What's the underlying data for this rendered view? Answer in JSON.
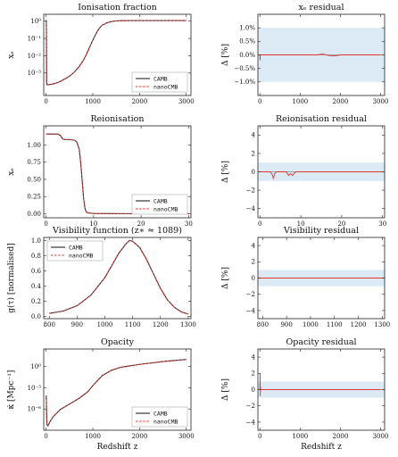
{
  "colors": {
    "camb": "#222222",
    "nanocmb": "#e3342f",
    "band": "#dbeaf5",
    "zero_line": "#555555"
  },
  "legend": {
    "camb": "CAMB",
    "nanocmb": "nanoCMB"
  },
  "chart_data": [
    {
      "type": "line",
      "title": "Ionisation fraction",
      "xlabel": "",
      "ylabel": "x_e",
      "ylabel_display": "xₑ",
      "yscale": "log",
      "xlim": [
        -50,
        3100
      ],
      "ylim": [
        5e-05,
        2.5
      ],
      "xticks": [
        0,
        1000,
        2000,
        3000
      ],
      "xtick_labels": [
        "0",
        "1000",
        "2000",
        "3000"
      ],
      "yticks": [
        0.001,
        0.01,
        0.1,
        1
      ],
      "ytick_labels": [
        "10⁻³",
        "10⁻²",
        "10⁻¹",
        "10⁰"
      ],
      "legend_position": "lower-right",
      "x": [
        0,
        2,
        5,
        8,
        12,
        20,
        40,
        100,
        200,
        300,
        400,
        500,
        600,
        700,
        800,
        850,
        900,
        950,
        1000,
        1050,
        1100,
        1150,
        1200,
        1300,
        1400,
        1500,
        1600,
        1800,
        2000,
        2500,
        3000
      ],
      "series": [
        {
          "name": "CAMB",
          "values": [
            1.0,
            1.08,
            1.16,
            0.2,
            0.0003,
            0.00021,
            0.00021,
            0.00022,
            0.00025,
            0.00032,
            0.00045,
            0.00065,
            0.0011,
            0.0022,
            0.0055,
            0.01,
            0.02,
            0.04,
            0.08,
            0.15,
            0.27,
            0.42,
            0.58,
            0.8,
            0.96,
            1.04,
            1.07,
            1.08,
            1.08,
            1.08,
            1.08
          ]
        },
        {
          "name": "nanoCMB",
          "values": [
            1.0,
            1.08,
            1.16,
            0.2,
            0.0003,
            0.00021,
            0.00021,
            0.00022,
            0.00025,
            0.00032,
            0.00045,
            0.00065,
            0.0011,
            0.0022,
            0.0055,
            0.01,
            0.02,
            0.04,
            0.08,
            0.15,
            0.27,
            0.42,
            0.58,
            0.8,
            0.96,
            1.04,
            1.07,
            1.08,
            1.08,
            1.08,
            1.08
          ]
        }
      ]
    },
    {
      "type": "line",
      "title": "x_e residual",
      "title_display": "xₑ residual",
      "xlabel": "",
      "ylabel": "Δ [%]",
      "xlim": [
        -50,
        3100
      ],
      "ylim": [
        -1.5,
        1.5
      ],
      "xticks": [
        0,
        1000,
        2000,
        3000
      ],
      "xtick_labels": [
        "0",
        "1000",
        "2000",
        "3000"
      ],
      "yticks": [
        -1.0,
        -0.5,
        0.0,
        0.5,
        1.0
      ],
      "ytick_labels": [
        "−1.0%",
        "−0.5%",
        "0.0%",
        "0.5%",
        "1.0%"
      ],
      "band": [
        -1,
        1
      ],
      "x": [
        0,
        5,
        10,
        100,
        500,
        1000,
        1400,
        1500,
        1550,
        1600,
        1700,
        1800,
        1900,
        2000,
        2500,
        3000
      ],
      "series": [
        {
          "name": "residual",
          "values": [
            0,
            -0.2,
            0,
            0,
            0,
            0,
            0,
            0.02,
            0.04,
            0.02,
            -0.02,
            -0.04,
            -0.03,
            0,
            0,
            0
          ]
        }
      ]
    },
    {
      "type": "line",
      "title": "Reionisation",
      "xlabel": "",
      "ylabel": "x_e",
      "ylabel_display": "xₑ",
      "xlim": [
        -0.5,
        30.5
      ],
      "ylim": [
        -0.06,
        1.28
      ],
      "xticks": [
        0,
        10,
        20,
        30
      ],
      "xtick_labels": [
        "0",
        "10",
        "20",
        "30"
      ],
      "yticks": [
        0.0,
        0.25,
        0.5,
        0.75,
        1.0
      ],
      "ytick_labels": [
        "0.00",
        "0.25",
        "0.50",
        "0.75",
        "1.00"
      ],
      "legend_position": "lower-right",
      "x": [
        0,
        2.5,
        3.0,
        3.5,
        4.0,
        5.0,
        6.0,
        6.5,
        7.0,
        7.3,
        7.6,
        7.9,
        8.2,
        8.5,
        9.0,
        10.0,
        15.0,
        20.0,
        25.0,
        30.0
      ],
      "series": [
        {
          "name": "CAMB",
          "values": [
            1.16,
            1.16,
            1.14,
            1.09,
            1.08,
            1.08,
            1.07,
            1.04,
            0.93,
            0.73,
            0.48,
            0.22,
            0.07,
            0.02,
            0.01,
            0.003,
            0.0002,
            0.0002,
            0.0002,
            0.0002
          ]
        },
        {
          "name": "nanoCMB",
          "values": [
            1.16,
            1.16,
            1.14,
            1.09,
            1.08,
            1.08,
            1.07,
            1.04,
            0.93,
            0.73,
            0.48,
            0.22,
            0.07,
            0.02,
            0.01,
            0.003,
            0.0002,
            0.0002,
            0.0002,
            0.0002
          ]
        }
      ]
    },
    {
      "type": "line",
      "title": "Reionisation residual",
      "xlabel": "",
      "ylabel": "Δ [%]",
      "xlim": [
        -0.5,
        30.5
      ],
      "ylim": [
        -5,
        5
      ],
      "xticks": [
        0,
        10,
        20,
        30
      ],
      "xtick_labels": [
        "0",
        "10",
        "20",
        "30"
      ],
      "yticks": [
        -4,
        -2,
        0,
        2,
        4
      ],
      "ytick_labels": [
        "−4",
        "−2",
        "0",
        "2",
        "4"
      ],
      "band": [
        -1,
        1
      ],
      "x": [
        0,
        2.5,
        3.0,
        3.3,
        3.6,
        4.0,
        6.5,
        7.0,
        7.5,
        8.0,
        8.5,
        9.0,
        10.0,
        20.0,
        30.0
      ],
      "series": [
        {
          "name": "residual",
          "values": [
            0,
            0,
            -0.3,
            -0.7,
            -0.2,
            0,
            0,
            -0.4,
            -0.2,
            -0.4,
            -0.1,
            0,
            0,
            0,
            0
          ]
        }
      ]
    },
    {
      "type": "line",
      "title": "Visibility function (z* ≈ 1089)",
      "title_display": "Visibility function (z∗ ≈ 1089)",
      "xlabel": "",
      "ylabel": "g(τ) [normalised]",
      "xlim": [
        780,
        1310
      ],
      "ylim": [
        -0.03,
        1.04
      ],
      "xticks": [
        800,
        900,
        1000,
        1100,
        1200,
        1300
      ],
      "xtick_labels": [
        "800",
        "900",
        "1000",
        "1100",
        "1200",
        "1300"
      ],
      "yticks": [
        0.0,
        0.2,
        0.4,
        0.6,
        0.8,
        1.0
      ],
      "ytick_labels": [
        "0.0",
        "0.2",
        "0.4",
        "0.6",
        "0.8",
        "1.0"
      ],
      "legend_position": "upper-left",
      "x": [
        800,
        850,
        900,
        950,
        1000,
        1025,
        1050,
        1075,
        1089,
        1100,
        1125,
        1150,
        1175,
        1200,
        1225,
        1250,
        1275,
        1300
      ],
      "series": [
        {
          "name": "CAMB",
          "values": [
            0.04,
            0.07,
            0.14,
            0.28,
            0.51,
            0.67,
            0.83,
            0.95,
            1.0,
            0.99,
            0.91,
            0.75,
            0.56,
            0.37,
            0.22,
            0.12,
            0.06,
            0.03
          ]
        },
        {
          "name": "nanoCMB",
          "values": [
            0.04,
            0.07,
            0.14,
            0.28,
            0.51,
            0.67,
            0.83,
            0.95,
            1.0,
            0.99,
            0.91,
            0.75,
            0.56,
            0.37,
            0.22,
            0.12,
            0.06,
            0.03
          ]
        }
      ]
    },
    {
      "type": "line",
      "title": "Visibility residual",
      "xlabel": "",
      "ylabel": "Δ [%]",
      "xlim": [
        780,
        1310
      ],
      "ylim": [
        -5,
        5
      ],
      "xticks": [
        800,
        900,
        1000,
        1100,
        1200,
        1300
      ],
      "xtick_labels": [
        "800",
        "900",
        "1000",
        "1100",
        "1200",
        "1300"
      ],
      "yticks": [
        -4,
        -2,
        0,
        2,
        4
      ],
      "ytick_labels": [
        "−4",
        "−2",
        "0",
        "2",
        "4"
      ],
      "band": [
        -1,
        1
      ],
      "x": [
        780,
        1310
      ],
      "series": [
        {
          "name": "residual",
          "values": [
            0,
            0
          ]
        }
      ]
    },
    {
      "type": "line",
      "title": "Opacity",
      "xlabel": "Redshift z",
      "ylabel": "κ̇ [Mpc⁻¹]",
      "yscale": "log",
      "xlim": [
        -50,
        3100
      ],
      "ylim": [
        1e-09,
        300
      ],
      "xticks": [
        0,
        1000,
        2000,
        3000
      ],
      "xtick_labels": [
        "0",
        "1000",
        "2000",
        "3000"
      ],
      "yticks": [
        1e-06,
        0.001,
        1
      ],
      "ytick_labels": [
        "10⁻⁶",
        "10⁻³",
        "10⁰"
      ],
      "legend_position": "lower-right",
      "x": [
        0,
        5,
        10,
        20,
        40,
        80,
        150,
        300,
        500,
        700,
        900,
        1000,
        1100,
        1200,
        1400,
        1600,
        2000,
        2500,
        3000
      ],
      "series": [
        {
          "name": "CAMB",
          "values": [
            3e-05,
            8e-05,
            5e-07,
            6e-09,
            4e-09,
            1.5e-08,
            8e-08,
            8e-07,
            5e-06,
            3e-05,
            0.0003,
            0.002,
            0.01,
            0.05,
            0.3,
            0.8,
            2,
            5,
            10
          ]
        },
        {
          "name": "nanoCMB",
          "values": [
            3e-05,
            8e-05,
            5e-07,
            6e-09,
            4e-09,
            1.5e-08,
            8e-08,
            8e-07,
            5e-06,
            3e-05,
            0.0003,
            0.002,
            0.01,
            0.05,
            0.3,
            0.8,
            2,
            5,
            10
          ]
        }
      ]
    },
    {
      "type": "line",
      "title": "Opacity residual",
      "xlabel": "Redshift z",
      "ylabel": "Δ [%]",
      "xlim": [
        -50,
        3100
      ],
      "ylim": [
        -5,
        5
      ],
      "xticks": [
        0,
        1000,
        2000,
        3000
      ],
      "xtick_labels": [
        "0",
        "1000",
        "2000",
        "3000"
      ],
      "yticks": [
        -4,
        -2,
        0,
        2,
        4
      ],
      "ytick_labels": [
        "−4",
        "−2",
        "0",
        "2",
        "4"
      ],
      "band": [
        -1,
        1
      ],
      "x": [
        0,
        5,
        8,
        10,
        15,
        20,
        100,
        1000,
        2000,
        3000
      ],
      "series": [
        {
          "name": "residual",
          "values": [
            0,
            2.0,
            0.8,
            -0.8,
            0.3,
            0,
            0,
            0,
            0,
            0
          ]
        }
      ]
    }
  ]
}
